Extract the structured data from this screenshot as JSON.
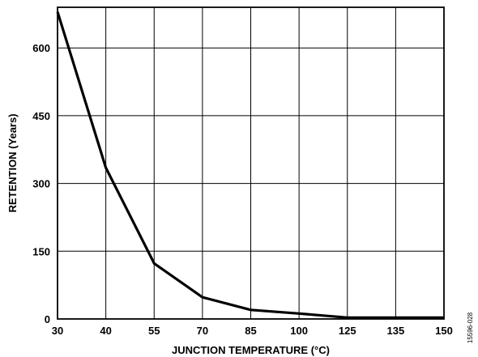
{
  "chart_data": {
    "type": "line",
    "xlabel": "JUNCTION TEMPERATURE (°C)",
    "ylabel": "RETENTION (Years)",
    "x_ticks": [
      30,
      40,
      55,
      70,
      85,
      100,
      125,
      135,
      150
    ],
    "y_ticks": [
      0,
      150,
      300,
      450,
      600
    ],
    "xlim": [
      30,
      150
    ],
    "ylim": [
      0,
      690
    ],
    "grid": true,
    "series": [
      {
        "x": [
          30,
          40,
          55,
          70,
          85,
          100,
          125,
          135,
          150
        ],
        "y": [
          680,
          335,
          123,
          48,
          20,
          12,
          3,
          3,
          3
        ]
      }
    ]
  },
  "figure_id": "15596-028"
}
